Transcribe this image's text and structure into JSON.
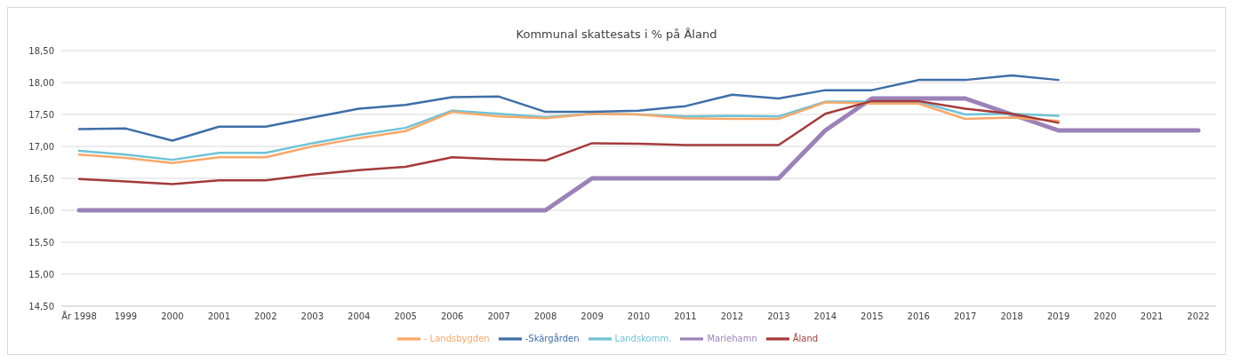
{
  "chart_data": {
    "type": "line",
    "title": "Kommunal skattesats i % på Åland",
    "categories": [
      "År 1998",
      "1999",
      "2000",
      "2001",
      "2002",
      "2003",
      "2004",
      "2005",
      "2006",
      "2007",
      "2008",
      "2009",
      "2010",
      "2011",
      "2012",
      "2013",
      "2014",
      "2015",
      "2016",
      "2017",
      "2018",
      "2019",
      "2020",
      "2021",
      "2022"
    ],
    "series": [
      {
        "name": "Mariehamn",
        "color": "#9b82b8",
        "values": [
          16.0,
          16.0,
          16.0,
          16.0,
          16.0,
          16.0,
          16.0,
          16.0,
          16.0,
          16.0,
          16.0,
          16.5,
          16.5,
          16.5,
          16.5,
          16.5,
          17.25,
          17.75,
          17.75,
          17.75,
          17.5,
          17.25,
          17.25,
          17.25,
          17.25
        ]
      },
      {
        "name": "Landskomm.",
        "color": "#6ec3d6",
        "values": [
          16.93,
          16.87,
          16.79,
          16.9,
          16.9,
          17.05,
          17.18,
          17.29,
          17.56,
          17.51,
          17.46,
          17.51,
          17.5,
          17.47,
          17.48,
          17.47,
          17.7,
          17.7,
          17.7,
          17.5,
          17.51,
          17.48,
          null,
          null,
          null
        ]
      },
      {
        "name": "- Landsbygden",
        "color": "#f9a868",
        "values": [
          16.87,
          16.82,
          16.74,
          16.83,
          16.83,
          17.0,
          17.13,
          17.24,
          17.54,
          17.47,
          17.44,
          17.51,
          17.5,
          17.44,
          17.43,
          17.43,
          17.69,
          17.67,
          17.67,
          17.43,
          17.45,
          17.4,
          null,
          null,
          null
        ]
      },
      {
        "name": "-Skärgården",
        "color": "#3e6ea8",
        "values": [
          17.27,
          17.28,
          17.09,
          17.31,
          17.31,
          17.45,
          17.59,
          17.65,
          17.77,
          17.78,
          17.54,
          17.54,
          17.56,
          17.63,
          17.81,
          17.75,
          17.88,
          17.88,
          18.04,
          18.04,
          18.11,
          18.04,
          null,
          null,
          null
        ]
      },
      {
        "name": "Åland",
        "color": "#a53a3a",
        "values": [
          16.49,
          16.45,
          16.41,
          16.47,
          16.47,
          16.56,
          16.63,
          16.68,
          16.83,
          16.8,
          16.78,
          17.05,
          17.04,
          17.02,
          17.02,
          17.02,
          17.51,
          17.71,
          17.71,
          17.59,
          17.51,
          17.37,
          null,
          null,
          null
        ]
      }
    ],
    "ylim": [
      14.5,
      18.5
    ],
    "yticks": [
      {
        "value": 14.5,
        "label": "14,50"
      },
      {
        "value": 15,
        "label": "15,00"
      },
      {
        "value": 15.5,
        "label": "15,50"
      },
      {
        "value": 16,
        "label": "16,00"
      },
      {
        "value": 16.5,
        "label": "16,50"
      },
      {
        "value": 17,
        "label": "17,00"
      },
      {
        "value": 17.5,
        "label": "17,50"
      },
      {
        "value": 18,
        "label": "18,00"
      },
      {
        "value": 18.5,
        "label": "18,50"
      }
    ],
    "grid": "y",
    "legend": "bottom",
    "marker": "none",
    "line_style": "solid"
  }
}
